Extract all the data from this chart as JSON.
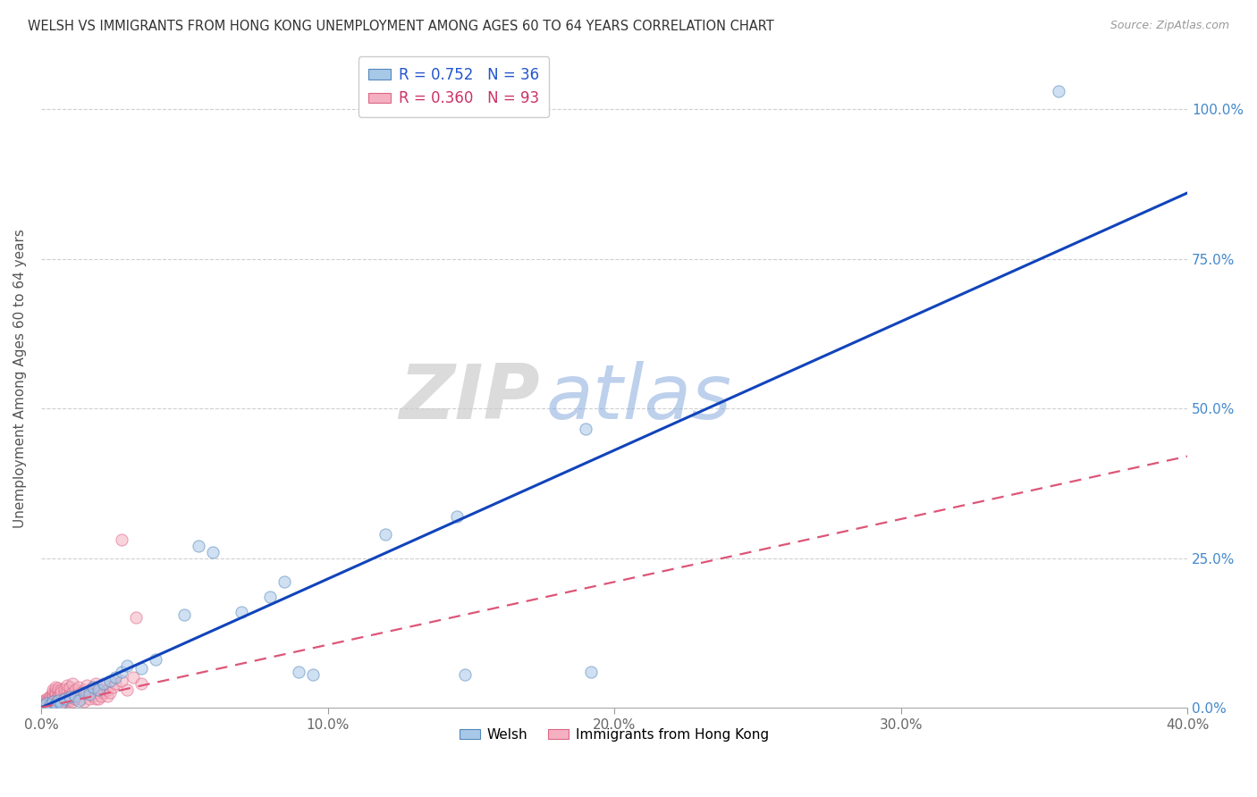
{
  "title": "WELSH VS IMMIGRANTS FROM HONG KONG UNEMPLOYMENT AMONG AGES 60 TO 64 YEARS CORRELATION CHART",
  "source": "Source: ZipAtlas.com",
  "ylabel": "Unemployment Among Ages 60 to 64 years",
  "xlim": [
    0.0,
    0.4
  ],
  "ylim": [
    0.0,
    1.1
  ],
  "xticks": [
    0.0,
    0.1,
    0.2,
    0.3,
    0.4
  ],
  "yticks": [
    0.0,
    0.25,
    0.5,
    0.75,
    1.0
  ],
  "xtick_labels": [
    "0.0%",
    "10.0%",
    "20.0%",
    "30.0%",
    "40.0%"
  ],
  "ytick_labels": [
    "0.0%",
    "25.0%",
    "50.0%",
    "75.0%",
    "100.0%"
  ],
  "welsh_color": "#a8c8e8",
  "welsh_edge_color": "#5588bb",
  "hk_color": "#f4b0c0",
  "hk_edge_color": "#dd6688",
  "trend_welsh_color": "#1144bb",
  "trend_hk_color": "#dd5577",
  "legend_welsh_label": "R = 0.752   N = 36",
  "legend_hk_label": "R = 0.360   N = 93",
  "legend_bottom_welsh": "Welsh",
  "legend_bottom_hk": "Immigrants from Hong Kong",
  "watermark_zip": "ZIP",
  "watermark_atlas": "atlas",
  "welsh_N": 36,
  "hk_N": 93,
  "welsh_slope": 2.15,
  "welsh_intercept": 0.0,
  "hk_slope": 1.05,
  "hk_intercept": 0.0,
  "marker_size": 90,
  "marker_alpha": 0.55,
  "background_color": "#ffffff",
  "grid_color": "#bbbbbb",
  "welsh_x": [
    0.001,
    0.002,
    0.003,
    0.004,
    0.005,
    0.006,
    0.007,
    0.008,
    0.01,
    0.012,
    0.013,
    0.015,
    0.017,
    0.018,
    0.02,
    0.022,
    0.024,
    0.026,
    0.028,
    0.03,
    0.035,
    0.04,
    0.05,
    0.055,
    0.06,
    0.07,
    0.08,
    0.085,
    0.09,
    0.095,
    0.12,
    0.145,
    0.148,
    0.19,
    0.192,
    0.355
  ],
  "welsh_y": [
    0.005,
    0.008,
    0.004,
    0.01,
    0.006,
    0.012,
    0.008,
    0.015,
    0.018,
    0.02,
    0.012,
    0.025,
    0.022,
    0.035,
    0.03,
    0.04,
    0.045,
    0.05,
    0.06,
    0.07,
    0.065,
    0.08,
    0.155,
    0.27,
    0.26,
    0.16,
    0.185,
    0.21,
    0.06,
    0.055,
    0.29,
    0.32,
    0.055,
    0.465,
    0.06,
    1.03
  ],
  "hk_x": [
    0.0005,
    0.001,
    0.001,
    0.001,
    0.001,
    0.001,
    0.002,
    0.002,
    0.002,
    0.002,
    0.002,
    0.002,
    0.003,
    0.003,
    0.003,
    0.003,
    0.003,
    0.003,
    0.003,
    0.004,
    0.004,
    0.004,
    0.004,
    0.004,
    0.004,
    0.004,
    0.005,
    0.005,
    0.005,
    0.005,
    0.005,
    0.005,
    0.005,
    0.006,
    0.006,
    0.006,
    0.006,
    0.006,
    0.006,
    0.007,
    0.007,
    0.007,
    0.007,
    0.007,
    0.008,
    0.008,
    0.008,
    0.008,
    0.009,
    0.009,
    0.009,
    0.009,
    0.01,
    0.01,
    0.01,
    0.01,
    0.011,
    0.011,
    0.011,
    0.012,
    0.012,
    0.012,
    0.013,
    0.013,
    0.014,
    0.014,
    0.015,
    0.015,
    0.016,
    0.016,
    0.017,
    0.017,
    0.018,
    0.018,
    0.019,
    0.019,
    0.02,
    0.02,
    0.021,
    0.021,
    0.022,
    0.022,
    0.023,
    0.023,
    0.024,
    0.025,
    0.026,
    0.028,
    0.03,
    0.032,
    0.035,
    0.033,
    0.028
  ],
  "hk_y": [
    0.003,
    0.005,
    0.008,
    0.01,
    0.006,
    0.012,
    0.004,
    0.008,
    0.012,
    0.007,
    0.015,
    0.01,
    0.005,
    0.01,
    0.015,
    0.008,
    0.02,
    0.012,
    0.018,
    0.01,
    0.015,
    0.02,
    0.025,
    0.008,
    0.018,
    0.03,
    0.012,
    0.02,
    0.03,
    0.008,
    0.022,
    0.025,
    0.035,
    0.015,
    0.02,
    0.028,
    0.008,
    0.033,
    0.018,
    0.012,
    0.02,
    0.03,
    0.008,
    0.025,
    0.015,
    0.025,
    0.01,
    0.032,
    0.018,
    0.03,
    0.012,
    0.038,
    0.015,
    0.022,
    0.035,
    0.012,
    0.025,
    0.01,
    0.04,
    0.02,
    0.03,
    0.015,
    0.02,
    0.035,
    0.025,
    0.015,
    0.03,
    0.01,
    0.025,
    0.038,
    0.015,
    0.028,
    0.02,
    0.035,
    0.015,
    0.04,
    0.025,
    0.015,
    0.03,
    0.02,
    0.025,
    0.038,
    0.02,
    0.03,
    0.025,
    0.035,
    0.04,
    0.045,
    0.03,
    0.05,
    0.04,
    0.15,
    0.28
  ]
}
